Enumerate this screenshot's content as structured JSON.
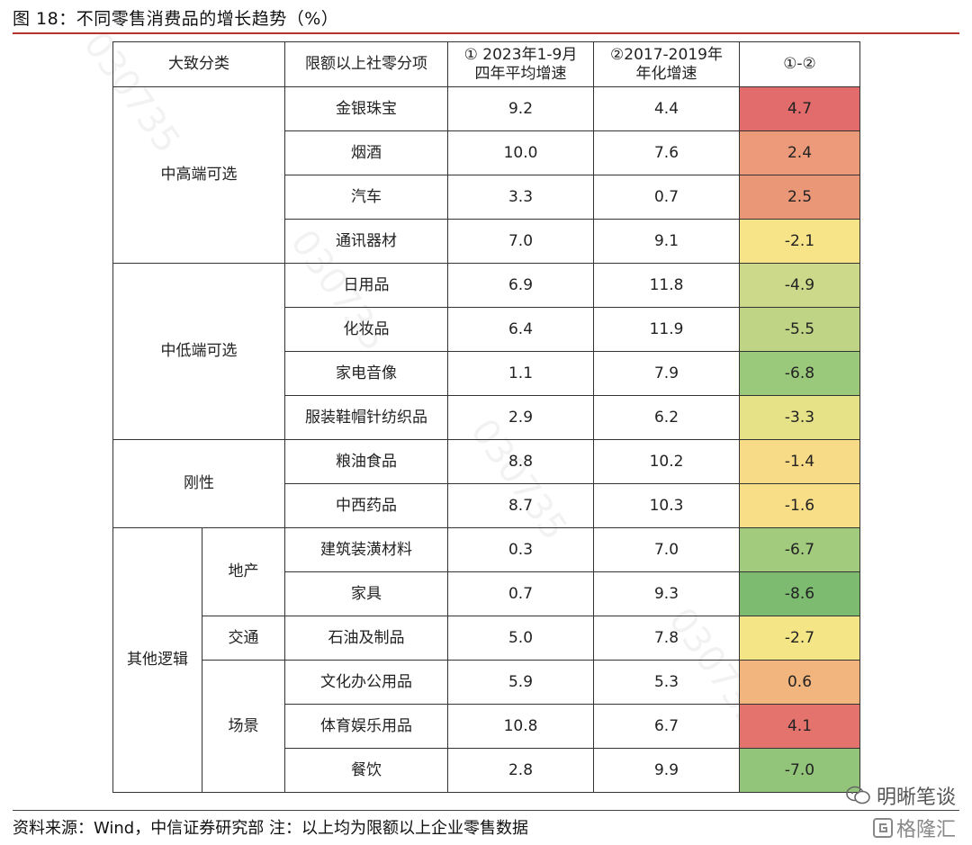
{
  "figure_title": "图 18：不同零售消费品的增长趋势（%）",
  "source_note": "资料来源：Wind，中信证券研究部 注：以上均为限额以上企业零售数据",
  "brand_wechat": "明晰笔谈",
  "brand_logo": "格隆汇",
  "chart_data": {
    "type": "table",
    "headers": [
      "大致分类",
      "限额以上社零分项",
      "① 2023年1-9月\n四年平均增速",
      "②2017-2019年\n年化增速",
      "①-②"
    ],
    "groups": [
      {
        "category": "中高端可选",
        "sub": null,
        "rows": [
          {
            "item": "金银珠宝",
            "v1": "9.2",
            "v2": "4.4",
            "diff": "4.7",
            "color": "#e26b6b"
          },
          {
            "item": "烟酒",
            "v1": "10.0",
            "v2": "7.6",
            "diff": "2.4",
            "color": "#ec9a7a"
          },
          {
            "item": "汽车",
            "v1": "3.3",
            "v2": "0.7",
            "diff": "2.5",
            "color": "#ea9777"
          },
          {
            "item": "通讯器材",
            "v1": "7.0",
            "v2": "9.1",
            "diff": "-2.1",
            "color": "#f7e388"
          }
        ]
      },
      {
        "category": "中低端可选",
        "sub": null,
        "rows": [
          {
            "item": "日用品",
            "v1": "6.9",
            "v2": "11.8",
            "diff": "-4.9",
            "color": "#cdd98a"
          },
          {
            "item": "化妆品",
            "v1": "6.4",
            "v2": "11.9",
            "diff": "-5.5",
            "color": "#bfd585"
          },
          {
            "item": "家电音像",
            "v1": "1.1",
            "v2": "7.9",
            "diff": "-6.8",
            "color": "#9bc97c"
          },
          {
            "item": "服装鞋帽针纺织品",
            "v1": "2.9",
            "v2": "6.2",
            "diff": "-3.3",
            "color": "#e6e288"
          }
        ]
      },
      {
        "category": "刚性",
        "sub": null,
        "rows": [
          {
            "item": "粮油食品",
            "v1": "8.8",
            "v2": "10.2",
            "diff": "-1.4",
            "color": "#f8db86"
          },
          {
            "item": "中西药品",
            "v1": "8.7",
            "v2": "10.3",
            "diff": "-1.6",
            "color": "#f8de87"
          }
        ]
      },
      {
        "category": "其他逻辑",
        "sub": "地产",
        "rows": [
          {
            "item": "建筑装潢材料",
            "v1": "0.3",
            "v2": "7.0",
            "diff": "-6.7",
            "color": "#a2cb7e"
          },
          {
            "item": "家具",
            "v1": "0.7",
            "v2": "9.3",
            "diff": "-8.6",
            "color": "#7dbb71"
          }
        ]
      },
      {
        "category": "其他逻辑",
        "sub": "交通",
        "rows": [
          {
            "item": "石油及制品",
            "v1": "5.0",
            "v2": "7.8",
            "diff": "-2.7",
            "color": "#f4e687"
          }
        ]
      },
      {
        "category": "其他逻辑",
        "sub": "场景",
        "rows": [
          {
            "item": "文化办公用品",
            "v1": "5.9",
            "v2": "5.3",
            "diff": "0.6",
            "color": "#f3b57e"
          },
          {
            "item": "体育娱乐用品",
            "v1": "10.8",
            "v2": "6.7",
            "diff": "4.1",
            "color": "#e4736e"
          },
          {
            "item": "餐饮",
            "v1": "2.8",
            "v2": "9.9",
            "diff": "-7.0",
            "color": "#92c47a"
          }
        ]
      }
    ]
  }
}
